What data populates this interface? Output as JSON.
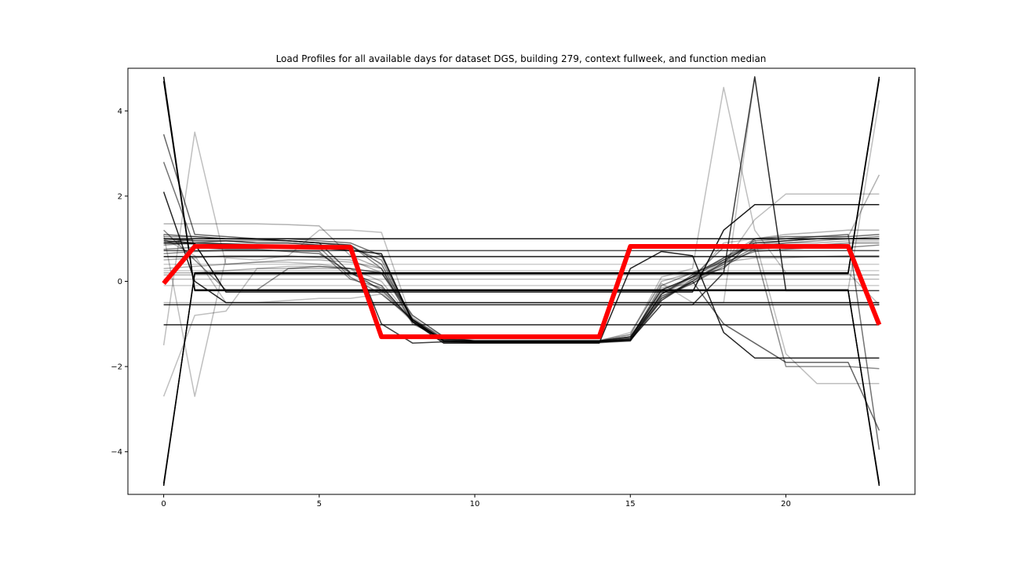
{
  "chart_data": {
    "type": "line",
    "title": "Load Profiles for all available days for dataset DGS, building 279, context fullweek, and function median",
    "xlabel": "",
    "ylabel": "",
    "xlim": [
      -1.15,
      24.15
    ],
    "ylim": [
      -5.0,
      5.0
    ],
    "xticks": [
      0,
      5,
      10,
      15,
      20
    ],
    "xtick_labels": [
      "0",
      "5",
      "10",
      "15",
      "20"
    ],
    "yticks": [
      -4,
      -2,
      0,
      2,
      4
    ],
    "ytick_labels": [
      "−4",
      "−2",
      "0",
      "2",
      "4"
    ],
    "grid": false,
    "legend": "none",
    "x": [
      0,
      1,
      2,
      3,
      4,
      5,
      6,
      7,
      8,
      9,
      10,
      11,
      12,
      13,
      14,
      15,
      16,
      17,
      18,
      19,
      20,
      21,
      22,
      23
    ],
    "background_series_color": "#000000",
    "median_color": "#ff0000",
    "series": [
      {
        "values": [
          4.8,
          -0.2,
          -0.2,
          -0.2,
          -0.2,
          -0.2,
          -0.2,
          -0.2,
          -0.2,
          -0.2,
          -0.2,
          -0.2,
          -0.2,
          -0.2,
          -0.2,
          -0.2,
          -0.2,
          -0.2,
          -0.2,
          -0.2,
          -0.2,
          -0.2,
          -0.2,
          -4.8
        ],
        "opacity": 1.0
      },
      {
        "values": [
          -4.8,
          0.2,
          0.2,
          0.2,
          0.2,
          0.2,
          0.2,
          0.2,
          0.2,
          0.2,
          0.2,
          0.2,
          0.2,
          0.2,
          0.2,
          0.2,
          0.2,
          0.2,
          0.2,
          0.2,
          0.2,
          0.2,
          0.2,
          4.8
        ],
        "opacity": 1.0
      },
      {
        "values": [
          4.7,
          -0.22,
          -0.22,
          -0.22,
          -0.22,
          -0.22,
          -0.22,
          -0.22,
          -0.22,
          -0.22,
          -0.22,
          -0.22,
          -0.22,
          -0.22,
          -0.22,
          -0.22,
          -0.22,
          -0.22,
          -0.22,
          -0.22,
          -0.22,
          -0.22,
          -0.22,
          -4.75
        ],
        "opacity": 1.0
      },
      {
        "values": [
          -4.75,
          0.18,
          0.18,
          0.18,
          0.18,
          0.18,
          0.18,
          0.18,
          0.18,
          0.18,
          0.18,
          0.18,
          0.18,
          0.18,
          0.18,
          0.18,
          0.18,
          0.18,
          0.18,
          0.18,
          0.18,
          0.18,
          0.18,
          4.75
        ],
        "opacity": 1.0
      },
      {
        "values": [
          1.0,
          1.0,
          1.0,
          1.0,
          1.0,
          1.0,
          1.0,
          1.0,
          1.0,
          1.0,
          1.0,
          1.0,
          1.0,
          1.0,
          1.0,
          1.0,
          1.0,
          1.0,
          1.0,
          1.0,
          1.0,
          1.0,
          1.0,
          1.0
        ],
        "opacity": 0.9
      },
      {
        "values": [
          0.58,
          0.58,
          0.58,
          0.58,
          0.58,
          0.58,
          0.58,
          0.58,
          0.58,
          0.58,
          0.58,
          0.58,
          0.58,
          0.58,
          0.58,
          0.58,
          0.58,
          0.58,
          0.58,
          0.58,
          0.58,
          0.58,
          0.58,
          0.58
        ],
        "opacity": 0.9
      },
      {
        "values": [
          -0.55,
          -0.55,
          -0.55,
          -0.55,
          -0.55,
          -0.55,
          -0.55,
          -0.55,
          -0.55,
          -0.55,
          -0.55,
          -0.55,
          -0.55,
          -0.55,
          -0.55,
          -0.55,
          -0.55,
          -0.55,
          -0.55,
          -0.55,
          -0.55,
          -0.55,
          -0.55,
          -0.55
        ],
        "opacity": 0.85
      },
      {
        "values": [
          -1.02,
          -1.02,
          -1.02,
          -1.02,
          -1.02,
          -1.02,
          -1.02,
          -1.02,
          -1.02,
          -1.02,
          -1.02,
          -1.02,
          -1.02,
          -1.02,
          -1.02,
          -1.02,
          -1.02,
          -1.02,
          -1.02,
          -1.02,
          -1.02,
          -1.02,
          -1.02,
          -1.02
        ],
        "opacity": 0.85
      },
      {
        "values": [
          0.72,
          0.72,
          0.72,
          0.72,
          0.72,
          0.72,
          0.72,
          0.72,
          0.72,
          0.72,
          0.72,
          0.72,
          0.72,
          0.72,
          0.72,
          0.72,
          0.72,
          0.72,
          0.72,
          0.72,
          0.72,
          0.72,
          0.72,
          0.72
        ],
        "opacity": 0.7
      },
      {
        "values": [
          2.1,
          0.0,
          -0.5,
          -0.5,
          -0.5,
          -0.5,
          -0.5,
          -0.5,
          -0.5,
          -0.5,
          -0.5,
          -0.5,
          -0.5,
          -0.5,
          -0.5,
          -0.5,
          -0.5,
          -0.5,
          -0.5,
          -0.5,
          -0.5,
          -0.5,
          -0.5,
          -0.5
        ],
        "opacity": 0.85
      },
      {
        "values": [
          0.95,
          0.9,
          0.88,
          0.86,
          0.82,
          0.78,
          0.72,
          0.65,
          -0.95,
          -1.45,
          -1.45,
          -1.45,
          -1.45,
          -1.45,
          -1.45,
          0.3,
          0.7,
          0.6,
          -1.2,
          -1.8,
          -1.8,
          -1.8,
          -1.8,
          -1.8
        ],
        "opacity": 0.85
      },
      {
        "values": [
          0.9,
          0.88,
          -0.25,
          -0.25,
          -0.25,
          -0.25,
          -0.25,
          -0.25,
          -0.25,
          -0.25,
          -0.25,
          -0.25,
          -0.25,
          -0.25,
          -0.25,
          -0.25,
          -0.25,
          -0.25,
          1.2,
          1.8,
          1.8,
          1.8,
          1.8,
          1.8
        ],
        "opacity": 0.9
      },
      {
        "values": [
          1.0,
          0.95,
          0.95,
          0.9,
          0.9,
          0.85,
          0.8,
          -1.0,
          -1.45,
          -1.42,
          -1.42,
          -1.42,
          -1.42,
          -1.42,
          -1.42,
          -1.38,
          -0.55,
          -0.55,
          0.2,
          4.8,
          -0.22,
          -0.22,
          -0.22,
          -0.22
        ],
        "opacity": 0.75
      },
      {
        "values": [
          1.05,
          1.05,
          1.0,
          1.0,
          0.95,
          0.9,
          0.8,
          0.5,
          -0.9,
          -1.4,
          -1.42,
          -1.42,
          -1.42,
          -1.42,
          -1.42,
          -1.4,
          -0.3,
          0.1,
          0.5,
          0.9,
          0.95,
          1.0,
          1.0,
          1.05
        ],
        "opacity": 0.45
      },
      {
        "values": [
          0.85,
          0.9,
          0.95,
          0.95,
          0.95,
          0.9,
          0.85,
          0.3,
          -1.0,
          -1.35,
          -1.4,
          -1.4,
          -1.4,
          -1.4,
          -1.4,
          -1.35,
          -0.45,
          0.05,
          0.4,
          0.8,
          0.9,
          0.95,
          1.0,
          1.0
        ],
        "opacity": 0.45
      },
      {
        "values": [
          3.45,
          1.1,
          1.05,
          1.0,
          0.95,
          0.9,
          0.2,
          -0.1,
          -0.95,
          -1.38,
          -1.42,
          -1.42,
          -1.42,
          -1.42,
          -1.42,
          -1.38,
          -0.4,
          0.0,
          -1.0,
          -1.45,
          -1.9,
          -1.9,
          -1.9,
          -3.5
        ],
        "opacity": 0.6
      },
      {
        "values": [
          2.8,
          0.8,
          0.75,
          0.75,
          0.7,
          0.65,
          0.2,
          -0.2,
          -0.92,
          -1.4,
          -1.42,
          -1.42,
          -1.42,
          -1.42,
          -1.42,
          -1.35,
          -0.2,
          0.1,
          0.3,
          1.0,
          1.05,
          1.05,
          1.1,
          -3.95
        ],
        "opacity": 0.55
      },
      {
        "values": [
          0.75,
          0.8,
          0.85,
          0.85,
          0.85,
          0.8,
          0.1,
          -0.3,
          -0.88,
          -1.36,
          -1.4,
          -1.4,
          -1.4,
          -1.4,
          -1.4,
          -1.3,
          -0.35,
          -0.05,
          0.35,
          0.75,
          0.8,
          0.85,
          0.9,
          0.9
        ],
        "opacity": 0.45
      },
      {
        "values": [
          0.65,
          0.7,
          0.72,
          0.72,
          0.72,
          0.7,
          0.05,
          -0.15,
          -0.9,
          -1.4,
          -1.42,
          -1.42,
          -1.42,
          -1.42,
          -1.42,
          -1.35,
          -0.1,
          0.2,
          0.45,
          0.7,
          0.75,
          0.8,
          0.8,
          0.85
        ],
        "opacity": 0.45
      },
      {
        "values": [
          1.2,
          0.5,
          -0.2,
          -0.2,
          0.3,
          0.35,
          0.3,
          0.2,
          -0.8,
          -1.3,
          -1.4,
          -1.4,
          -1.4,
          -1.4,
          -1.4,
          -1.3,
          -0.2,
          0.1,
          0.8,
          0.75,
          -2.0,
          -2.0,
          -2.0,
          -2.05
        ],
        "opacity": 0.45
      },
      {
        "values": [
          1.35,
          1.35,
          1.35,
          1.35,
          1.33,
          1.3,
          0.6,
          0.3,
          -0.8,
          -1.3,
          -1.4,
          -1.4,
          -1.4,
          -1.4,
          -1.4,
          -1.25,
          0.0,
          0.2,
          0.5,
          0.85,
          0.9,
          0.9,
          0.95,
          0.95
        ],
        "opacity": 0.3
      },
      {
        "values": [
          -1.5,
          3.5,
          0.4,
          0.45,
          0.45,
          0.4,
          0.3,
          -0.25,
          -0.95,
          -1.35,
          -1.4,
          -1.4,
          -1.4,
          -1.4,
          -1.4,
          -1.2,
          -0.05,
          -0.5,
          -0.5,
          4.8,
          -0.2,
          -0.2,
          -0.2,
          4.25
        ],
        "opacity": 0.25
      },
      {
        "values": [
          -2.7,
          -0.8,
          -0.7,
          0.3,
          0.35,
          0.35,
          0.3,
          0.0,
          -0.9,
          -1.3,
          -1.38,
          -1.38,
          -1.38,
          -1.38,
          -1.38,
          -1.25,
          0.1,
          0.3,
          4.55,
          1.2,
          0.2,
          0.2,
          0.2,
          -0.55
        ],
        "opacity": 0.25
      },
      {
        "values": [
          1.1,
          -2.7,
          0.55,
          0.5,
          0.6,
          1.2,
          1.2,
          1.15,
          -0.95,
          -1.4,
          -1.42,
          -1.42,
          -1.42,
          -1.42,
          -1.42,
          -1.35,
          -0.15,
          -0.05,
          0.4,
          1.45,
          2.05,
          2.05,
          2.05,
          2.05
        ],
        "opacity": 0.25
      },
      {
        "values": [
          1.0,
          0.6,
          -0.5,
          -0.5,
          -0.45,
          -0.4,
          -0.4,
          -0.3,
          -0.9,
          -1.35,
          -1.4,
          -1.4,
          -1.4,
          -1.4,
          -1.4,
          -1.3,
          -0.3,
          0.05,
          0.9,
          1.0,
          -1.7,
          -2.4,
          -2.4,
          -2.4
        ],
        "opacity": 0.25
      },
      {
        "values": [
          0.2,
          0.2,
          0.25,
          0.3,
          0.3,
          0.3,
          0.3,
          0.2,
          -0.85,
          -1.35,
          -1.4,
          -1.4,
          -1.4,
          -1.4,
          -1.4,
          -1.3,
          -0.25,
          0.1,
          0.55,
          1.0,
          1.1,
          1.15,
          1.2,
          1.2
        ],
        "opacity": 0.3
      },
      {
        "values": [
          0.3,
          0.35,
          0.4,
          0.45,
          0.5,
          0.5,
          0.45,
          0.3,
          -0.9,
          -1.38,
          -1.4,
          -1.4,
          -1.4,
          -1.4,
          -1.4,
          -1.32,
          -0.35,
          0.0,
          0.5,
          0.85,
          0.95,
          1.0,
          1.05,
          2.5
        ],
        "opacity": 0.3
      },
      {
        "values": [
          0.5,
          0.55,
          0.6,
          0.6,
          0.6,
          0.55,
          0.5,
          0.2,
          -0.92,
          -1.4,
          -1.41,
          -1.41,
          -1.41,
          -1.41,
          -1.41,
          -1.33,
          -0.4,
          -0.05,
          0.45,
          0.55,
          0.55,
          0.58,
          0.6,
          0.6
        ],
        "opacity": 0.3
      },
      {
        "values": [
          0.15,
          0.15,
          0.15,
          0.15,
          0.15,
          0.15,
          0.15,
          0.15,
          0.15,
          0.15,
          0.15,
          0.15,
          0.15,
          0.15,
          0.15,
          0.15,
          0.15,
          0.15,
          0.15,
          0.15,
          0.15,
          0.15,
          0.15,
          0.15
        ],
        "opacity": 0.3
      },
      {
        "values": [
          0.4,
          0.4,
          0.4,
          0.4,
          0.4,
          0.4,
          0.4,
          0.4,
          0.4,
          0.4,
          0.4,
          0.4,
          0.4,
          0.4,
          0.4,
          0.4,
          0.4,
          0.4,
          0.4,
          0.4,
          0.4,
          0.4,
          0.4,
          0.4
        ],
        "opacity": 0.2
      },
      {
        "values": [
          0.25,
          0.25,
          0.25,
          0.25,
          0.25,
          0.25,
          0.25,
          0.25,
          0.25,
          0.25,
          0.25,
          0.25,
          0.25,
          0.25,
          0.25,
          0.25,
          0.25,
          0.25,
          0.25,
          0.25,
          0.25,
          0.25,
          0.25,
          0.25
        ],
        "opacity": 0.2
      },
      {
        "values": [
          -0.1,
          -0.1,
          -0.1,
          -0.1,
          -0.1,
          -0.1,
          -0.1,
          -0.1,
          -0.1,
          -0.1,
          -0.1,
          -0.1,
          -0.1,
          -0.1,
          -0.1,
          -0.1,
          -0.1,
          -0.1,
          -0.1,
          -0.1,
          -0.1,
          -0.1,
          -0.1,
          -0.1
        ],
        "opacity": 0.2
      },
      {
        "values": [
          -0.5,
          -0.5,
          -0.5,
          -0.5,
          -0.5,
          -0.5,
          -0.5,
          -0.5,
          -0.5,
          -0.5,
          -0.5,
          -0.5,
          -0.5,
          -0.5,
          -0.5,
          -0.5,
          -0.5,
          -0.5,
          -0.5,
          -0.5,
          -0.5,
          -0.5,
          -0.5,
          -0.5
        ],
        "opacity": 0.25
      },
      {
        "values": [
          0.05,
          0.05,
          0.05,
          0.05,
          0.05,
          0.05,
          0.05,
          0.05,
          0.05,
          0.05,
          0.05,
          0.05,
          0.05,
          0.05,
          0.05,
          0.05,
          0.05,
          0.05,
          0.05,
          0.05,
          0.05,
          0.05,
          0.05,
          0.05
        ],
        "opacity": 0.25
      },
      {
        "values": [
          1.1,
          1.05,
          1.0,
          1.0,
          1.0,
          0.95,
          0.9,
          0.6,
          -0.95,
          -1.42,
          -1.44,
          -1.44,
          -1.44,
          -1.44,
          -1.44,
          -1.4,
          -0.45,
          0.0,
          0.45,
          0.95,
          1.0,
          1.05,
          1.05,
          1.1
        ],
        "opacity": 0.55
      },
      {
        "values": [
          0.9,
          1.0,
          1.0,
          0.98,
          0.95,
          0.9,
          0.85,
          0.4,
          -0.9,
          -1.4,
          -1.43,
          -1.43,
          -1.43,
          -1.43,
          -1.43,
          -1.38,
          -0.3,
          0.15,
          0.55,
          0.9,
          0.95,
          1.0,
          1.0,
          1.0
        ],
        "opacity": 0.55
      }
    ],
    "median": {
      "values": [
        -0.05,
        0.82,
        0.82,
        0.82,
        0.81,
        0.8,
        0.8,
        -1.3,
        -1.3,
        -1.3,
        -1.3,
        -1.3,
        -1.3,
        -1.3,
        -1.3,
        0.82,
        0.82,
        0.82,
        0.82,
        0.82,
        0.82,
        0.82,
        0.82,
        -1.02
      ]
    }
  }
}
